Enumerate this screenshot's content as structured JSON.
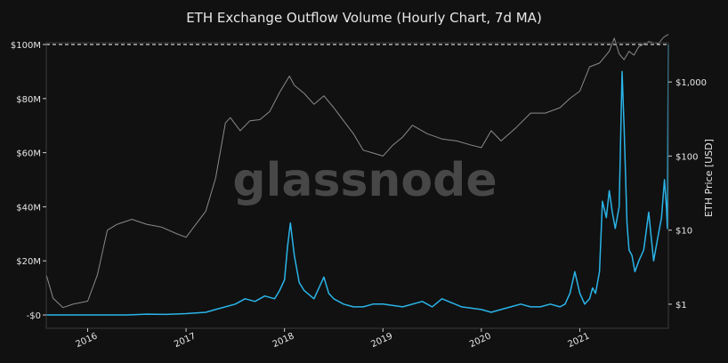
{
  "chart_data": {
    "type": "line",
    "title": "ETH Exchange Outflow Volume (Hourly Chart, 7d MA)",
    "watermark": "glassnode",
    "y_left": {
      "label": "",
      "range": [
        0,
        100000000
      ],
      "ticks": [
        {
          "value": 0,
          "label": "-$0"
        },
        {
          "value": 20000000,
          "label": "$20M"
        },
        {
          "value": 40000000,
          "label": "$40M"
        },
        {
          "value": 60000000,
          "label": "$60M"
        },
        {
          "value": 80000000,
          "label": "$80M"
        },
        {
          "value": 100000000,
          "label": "$100M"
        }
      ]
    },
    "y_right": {
      "label": "ETH Price [USD]",
      "scale": "log",
      "range": [
        0.5,
        4000
      ],
      "ticks": [
        {
          "value": 1,
          "label": "$1"
        },
        {
          "value": 10,
          "label": "$10"
        },
        {
          "value": 100,
          "label": "$100"
        },
        {
          "value": 1000,
          "label": "$1,000"
        }
      ]
    },
    "x_axis": {
      "range": [
        2015.58,
        2021.9
      ],
      "ticks": [
        {
          "value": 2016,
          "label": "2016"
        },
        {
          "value": 2017,
          "label": "2017"
        },
        {
          "value": 2018,
          "label": "2018"
        },
        {
          "value": 2019,
          "label": "2019"
        },
        {
          "value": 2020,
          "label": "2020"
        },
        {
          "value": 2021,
          "label": "2021"
        }
      ]
    },
    "reference_line": {
      "value": 100000000,
      "style": "dashed"
    },
    "colors": {
      "outflow": "#2ab4e8",
      "price": "#8a8a8a",
      "background": "#111111",
      "text": "#e6e6e6",
      "watermark": "#5a5a5a",
      "reference": "#ffffff"
    },
    "grid": false,
    "series": [
      {
        "axis": "left",
        "x": [
          2015.58,
          2015.7,
          2015.85,
          2016.0,
          2016.2,
          2016.4,
          2016.6,
          2016.8,
          2017.0,
          2017.2,
          2017.3,
          2017.4,
          2017.5,
          2017.6,
          2017.7,
          2017.8,
          2017.9,
          2017.95,
          2018.0,
          2018.03,
          2018.06,
          2018.1,
          2018.15,
          2018.2,
          2018.3,
          2018.35,
          2018.4,
          2018.45,
          2018.5,
          2018.6,
          2018.7,
          2018.8,
          2018.9,
          2019.0,
          2019.2,
          2019.4,
          2019.5,
          2019.6,
          2019.8,
          2020.0,
          2020.1,
          2020.2,
          2020.3,
          2020.4,
          2020.5,
          2020.6,
          2020.7,
          2020.8,
          2020.85,
          2020.9,
          2020.95,
          2021.0,
          2021.05,
          2021.1,
          2021.13,
          2021.16,
          2021.2,
          2021.23,
          2021.27,
          2021.3,
          2021.33,
          2021.36,
          2021.4,
          2021.43,
          2021.45,
          2021.48,
          2021.5,
          2021.53,
          2021.56,
          2021.6,
          2021.65,
          2021.7,
          2021.75,
          2021.8,
          2021.83,
          2021.86,
          2021.88,
          2021.89,
          2021.9
        ],
        "y": [
          0,
          0,
          0,
          0,
          0,
          0,
          300000,
          200000,
          500000,
          1000000,
          2000000,
          3000000,
          4000000,
          6000000,
          5000000,
          7000000,
          6000000,
          9000000,
          13000000,
          25000000,
          34000000,
          22000000,
          12000000,
          9000000,
          6000000,
          10000000,
          14000000,
          8000000,
          6000000,
          4000000,
          3000000,
          3000000,
          4000000,
          4000000,
          3000000,
          5000000,
          3000000,
          6000000,
          3000000,
          2000000,
          1000000,
          2000000,
          3000000,
          4000000,
          3000000,
          3000000,
          4000000,
          3000000,
          4000000,
          8000000,
          16000000,
          8000000,
          4000000,
          6000000,
          10000000,
          8000000,
          16000000,
          42000000,
          36000000,
          46000000,
          38000000,
          32000000,
          40000000,
          90000000,
          70000000,
          34000000,
          24000000,
          22000000,
          16000000,
          20000000,
          24000000,
          38000000,
          20000000,
          30000000,
          36000000,
          50000000,
          40000000,
          32000000,
          100000000
        ]
      },
      {
        "axis": "right",
        "x": [
          2015.58,
          2015.65,
          2015.75,
          2015.85,
          2016.0,
          2016.1,
          2016.2,
          2016.3,
          2016.45,
          2016.6,
          2016.75,
          2016.9,
          2017.0,
          2017.1,
          2017.2,
          2017.3,
          2017.4,
          2017.45,
          2017.55,
          2017.65,
          2017.75,
          2017.85,
          2017.95,
          2018.05,
          2018.1,
          2018.2,
          2018.3,
          2018.4,
          2018.5,
          2018.6,
          2018.7,
          2018.8,
          2018.9,
          2019.0,
          2019.1,
          2019.2,
          2019.3,
          2019.45,
          2019.6,
          2019.75,
          2019.9,
          2020.0,
          2020.1,
          2020.2,
          2020.35,
          2020.5,
          2020.65,
          2020.8,
          2020.9,
          2021.0,
          2021.1,
          2021.2,
          2021.3,
          2021.35,
          2021.4,
          2021.45,
          2021.5,
          2021.55,
          2021.6,
          2021.7,
          2021.8,
          2021.85,
          2021.9
        ],
        "y": [
          2.5,
          1.2,
          0.9,
          1,
          1.1,
          2.5,
          10,
          12,
          14,
          12,
          11,
          9,
          8,
          12,
          18,
          50,
          280,
          330,
          220,
          300,
          310,
          400,
          720,
          1200,
          900,
          700,
          500,
          650,
          450,
          300,
          200,
          120,
          110,
          100,
          140,
          180,
          260,
          200,
          170,
          160,
          140,
          130,
          220,
          160,
          240,
          380,
          380,
          450,
          600,
          750,
          1600,
          1800,
          2600,
          3900,
          2400,
          2000,
          2600,
          2300,
          3000,
          3500,
          3300,
          4000,
          4400
        ]
      }
    ]
  }
}
